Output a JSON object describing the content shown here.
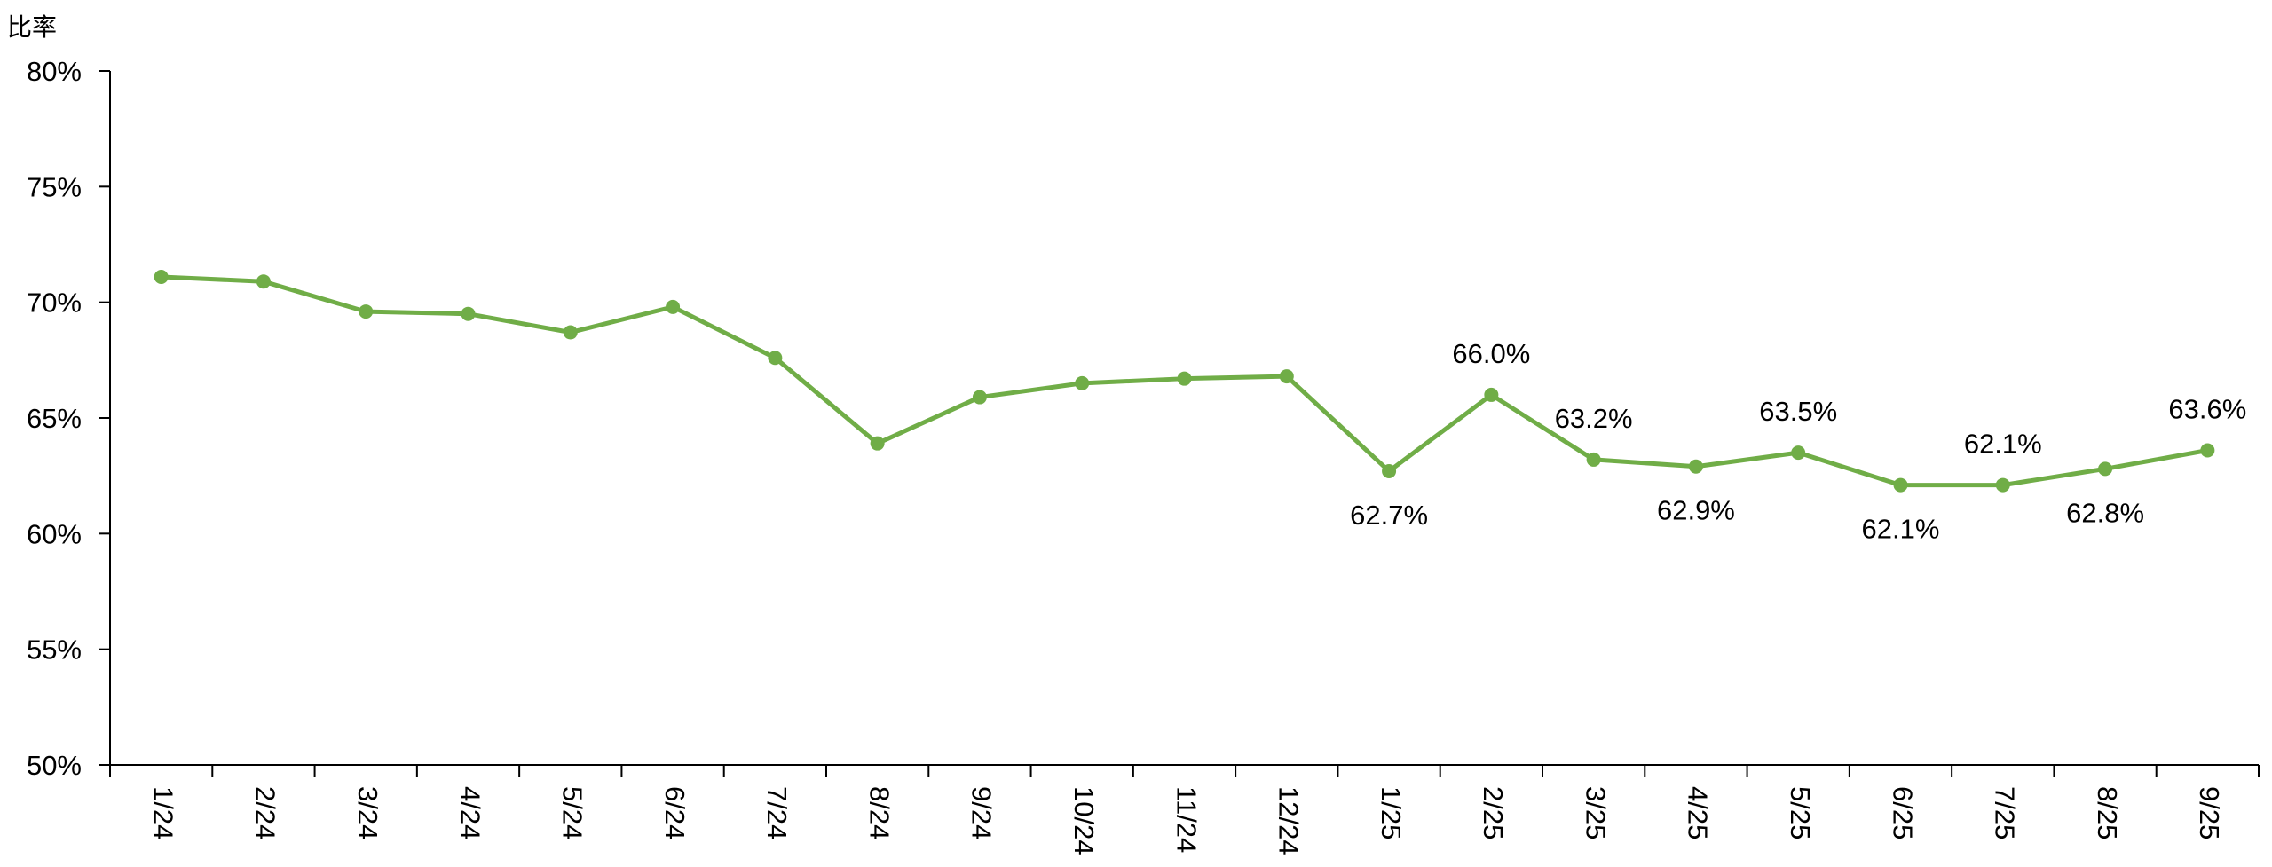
{
  "chart_data": {
    "type": "line",
    "ylabel": "比率",
    "xlabel": "",
    "title": "",
    "ylim": [
      50,
      80
    ],
    "yticks": [
      "50%",
      "55%",
      "60%",
      "65%",
      "70%",
      "75%",
      "80%"
    ],
    "ytick_values": [
      50,
      55,
      60,
      65,
      70,
      75,
      80
    ],
    "categories": [
      "1/24",
      "2/24",
      "3/24",
      "4/24",
      "5/24",
      "6/24",
      "7/24",
      "8/24",
      "9/24",
      "10/24",
      "11/24",
      "12/24",
      "1/25",
      "2/25",
      "3/25",
      "4/25",
      "5/25",
      "6/25",
      "7/25",
      "8/25",
      "9/25"
    ],
    "series": [
      {
        "color": "#70ad47",
        "values": [
          71.1,
          70.9,
          69.6,
          69.5,
          68.7,
          69.8,
          67.6,
          63.9,
          65.9,
          66.5,
          66.7,
          66.8,
          62.7,
          66.0,
          63.2,
          62.9,
          63.5,
          62.1,
          62.1,
          62.8,
          63.6
        ]
      }
    ],
    "data_labels": [
      {
        "index": 12,
        "text": "62.7%",
        "position": "below"
      },
      {
        "index": 13,
        "text": "66.0%",
        "position": "above"
      },
      {
        "index": 14,
        "text": "63.2%",
        "position": "above"
      },
      {
        "index": 15,
        "text": "62.9%",
        "position": "below"
      },
      {
        "index": 16,
        "text": "63.5%",
        "position": "above"
      },
      {
        "index": 17,
        "text": "62.1%",
        "position": "below"
      },
      {
        "index": 18,
        "text": "62.1%",
        "position": "above"
      },
      {
        "index": 19,
        "text": "62.8%",
        "position": "below"
      },
      {
        "index": 20,
        "text": "63.6%",
        "position": "above"
      }
    ],
    "grid": false,
    "legend": "none"
  }
}
